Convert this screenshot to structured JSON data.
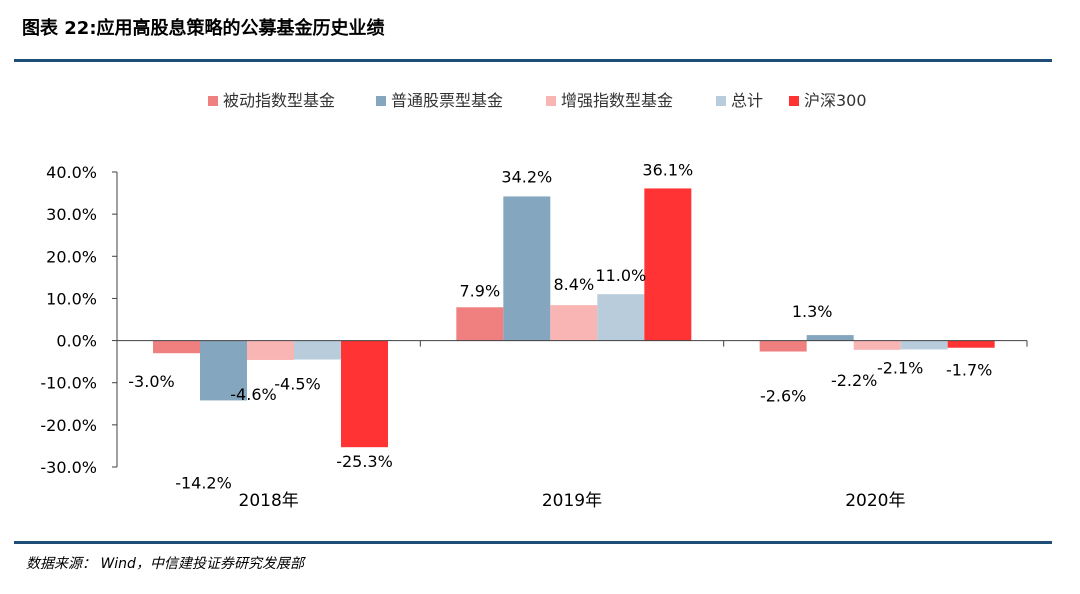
{
  "figure_title": "图表  22:应用高股息策略的公募基金历史业绩",
  "source": "数据来源：  Wind，中信建投证券研究发展部",
  "chart_data": {
    "type": "bar",
    "title": "",
    "xlabel": "",
    "ylabel": "",
    "categories": [
      "2018年",
      "2019年",
      "2020年"
    ],
    "ylim": [
      -30,
      40
    ],
    "yticks": [
      "40.0%",
      "30.0%",
      "20.0%",
      "10.0%",
      "0.0%",
      "-10.0%",
      "-20.0%",
      "-30.0%"
    ],
    "ytick_values": [
      40,
      30,
      20,
      10,
      0,
      -10,
      -20,
      -30
    ],
    "legend_position": "top-center",
    "grid": false,
    "series": [
      {
        "name": "被动指数型基金",
        "color": "#f08080",
        "values": [
          -3.0,
          7.9,
          -2.6
        ],
        "labels": [
          "-3.0%",
          "7.9%",
          "-2.6%"
        ]
      },
      {
        "name": "普通股票型基金",
        "color": "#84a6bf",
        "values": [
          -14.2,
          34.2,
          1.3
        ],
        "labels": [
          "-14.2%",
          "34.2%",
          "1.3%"
        ]
      },
      {
        "name": "增强指数型基金",
        "color": "#f9b4b4",
        "values": [
          -4.6,
          8.4,
          -2.2
        ],
        "labels": [
          "-4.6%",
          "8.4%",
          "-2.2%"
        ]
      },
      {
        "name": "总计",
        "color": "#b8ccdb",
        "values": [
          -4.5,
          11.0,
          -2.1
        ],
        "labels": [
          "-4.5%",
          "11.0%",
          "-2.1%"
        ]
      },
      {
        "name": "沪深300",
        "color": "#ff3333",
        "values": [
          -25.3,
          36.1,
          -1.7
        ],
        "labels": [
          "-25.3%",
          "36.1%",
          "-1.7%"
        ]
      }
    ]
  }
}
